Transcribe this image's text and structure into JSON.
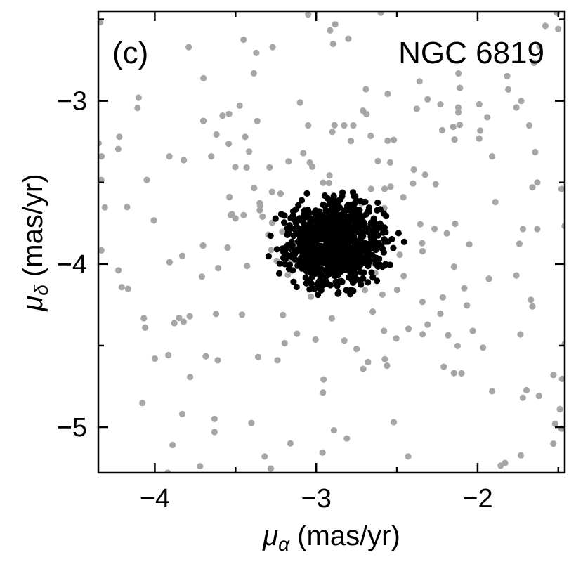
{
  "chart_data": {
    "type": "scatter",
    "panel_label": "(c)",
    "title": "NGC 6819",
    "xlabel": {
      "symbol": "μ",
      "sub": "α",
      "unit": " (mas/yr)"
    },
    "ylabel": {
      "symbol": "μ",
      "sub": "δ",
      "unit": " (mas/yr)"
    },
    "xlim": [
      -4.35,
      -1.46
    ],
    "ylim": [
      -5.28,
      -2.45
    ],
    "x_major_ticks": [
      -4,
      -3,
      -2
    ],
    "x_tick_labels": [
      "−4",
      "−3",
      "−2"
    ],
    "y_major_ticks": [
      -5,
      -4,
      -3
    ],
    "y_tick_labels": [
      "−5",
      "−4",
      "−3"
    ],
    "x_minor_ticks": [
      -3.5,
      -2.5,
      -1.5
    ],
    "y_minor_ticks": [
      -4.5,
      -3.5,
      -2.5
    ],
    "grid": false,
    "colors": {
      "members": "#000000",
      "field": "#a6a6a6",
      "axes": "#000000"
    },
    "series": [
      {
        "role": "field",
        "count": 260,
        "seed": 7,
        "manual_points": [
          [
            -4.33,
            -3.34
          ],
          [
            -4.22,
            -3.22
          ],
          [
            -4.1,
            -2.98
          ],
          [
            -3.91,
            -3.34
          ],
          [
            -3.92,
            -5.28
          ],
          [
            -3.85,
            -4.33
          ],
          [
            -3.83,
            -4.92
          ],
          [
            -3.79,
            -2.67
          ],
          [
            -3.83,
            -3.95
          ],
          [
            -3.65,
            -3.34
          ],
          [
            -3.63,
            -4.95
          ],
          [
            -3.63,
            -5.03
          ],
          [
            -3.58,
            -3.09
          ],
          [
            -3.54,
            -3.08
          ],
          [
            -3.53,
            -3.7
          ],
          [
            -3.45,
            -3.7
          ],
          [
            -3.44,
            -3.22
          ],
          [
            -3.35,
            -3.67
          ],
          [
            -3.32,
            -5.18
          ],
          [
            -3.27,
            -2.67
          ],
          [
            -3.1,
            -3.01
          ],
          [
            -3.08,
            -3.32
          ],
          [
            -3.05,
            -2.47
          ],
          [
            -3.05,
            -3.15
          ],
          [
            -2.9,
            -3.19
          ],
          [
            -2.77,
            -3.15
          ],
          [
            -2.71,
            -3.06
          ],
          [
            -2.66,
            -3.54
          ],
          [
            -2.6,
            -2.46
          ],
          [
            -2.46,
            -3.59
          ],
          [
            -2.36,
            -2.88
          ],
          [
            -2.31,
            -2.99
          ],
          [
            -2.26,
            -3.51
          ],
          [
            -2.22,
            -3.18
          ],
          [
            -2.12,
            -3.04
          ],
          [
            -2.11,
            -2.92
          ],
          [
            -1.99,
            -3.23
          ],
          [
            -1.94,
            -3.1
          ],
          [
            -1.91,
            -3.34
          ],
          [
            -1.89,
            -3.62
          ],
          [
            -1.81,
            -2.93
          ],
          [
            -1.76,
            -3.04
          ],
          [
            -1.73,
            -3.0
          ],
          [
            -1.68,
            -3.15
          ],
          [
            -1.66,
            -3.53
          ],
          [
            -1.63,
            -3.5
          ],
          [
            -1.58,
            -2.54
          ],
          [
            -1.51,
            -2.46
          ],
          [
            -1.48,
            -3.54
          ],
          [
            -1.46,
            -4.49
          ],
          [
            -1.52,
            -4.98
          ],
          [
            -1.49,
            -4.89
          ],
          [
            -1.48,
            -5.01
          ],
          [
            -1.53,
            -4.68
          ],
          [
            -1.67,
            -4.22
          ],
          [
            -1.66,
            -4.26
          ],
          [
            -1.72,
            -4.82
          ],
          [
            -1.76,
            -4.07
          ],
          [
            -1.83,
            -5.22
          ],
          [
            -1.91,
            -4.78
          ],
          [
            -1.93,
            -4.09
          ],
          [
            -2.03,
            -4.41
          ],
          [
            -2.1,
            -4.67
          ],
          [
            -2.21,
            -4.63
          ],
          [
            -2.43,
            -5.18
          ],
          [
            -2.52,
            -4.97
          ],
          [
            -2.58,
            -4.41
          ],
          [
            -2.75,
            -4.52
          ],
          [
            -2.81,
            -5.07
          ],
          [
            -2.89,
            -5.02
          ],
          [
            -3.16,
            -5.1
          ],
          [
            -3.24,
            -4.59
          ],
          [
            -3.36,
            -4.57
          ],
          [
            -3.46,
            -4.31
          ],
          [
            -3.61,
            -4.59
          ],
          [
            -4.06,
            -4.39
          ],
          [
            -4.0,
            -4.58
          ],
          [
            -3.89,
            -5.11
          ],
          [
            -3.72,
            -5.24
          ]
        ],
        "clusters": [
          {
            "x0": -2.9,
            "y0": -3.85,
            "sx": 0.42,
            "sy": 0.38,
            "n": 90
          }
        ]
      },
      {
        "role": "members",
        "count": 900,
        "seed": 3,
        "center": [
          -2.88,
          -3.87
        ],
        "sigma": [
          0.16,
          0.13
        ],
        "max_radius": 0.42
      }
    ]
  }
}
